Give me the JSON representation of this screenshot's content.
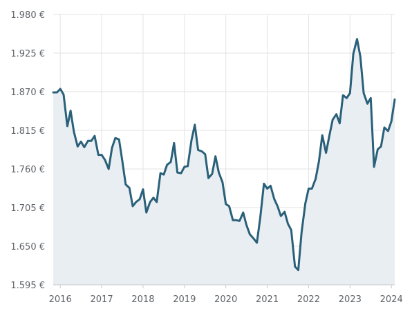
{
  "chart_data": {
    "type": "area",
    "title": "",
    "xlabel": "",
    "ylabel": "",
    "y_ticks": [
      "1.980 €",
      "1.925 €",
      "1.870 €",
      "1.815 €",
      "1.760 €",
      "1.705 €",
      "1.650 €",
      "1.595 €"
    ],
    "y_tick_values": [
      1980,
      1925,
      1870,
      1815,
      1760,
      1705,
      1650,
      1595
    ],
    "ylim": [
      1595,
      1980
    ],
    "x_ticks": [
      "2016",
      "2017",
      "2018",
      "2019",
      "2020",
      "2021",
      "2022",
      "2023",
      "2024"
    ],
    "x_tick_values": [
      2016,
      2017,
      2018,
      2019,
      2020,
      2021,
      2022,
      2023,
      2024
    ],
    "xlim": [
      2015.83,
      2024.08
    ],
    "grid": true,
    "colors": {
      "line": "#2a6079",
      "fill": "#e9eef2",
      "grid": "#e3e3e3",
      "axis": "#c9c9c9"
    },
    "series": [
      {
        "x": [
          2015.83,
          2015.92,
          2016.0,
          2016.08,
          2016.17,
          2016.25,
          2016.33,
          2016.42,
          2016.5,
          2016.58,
          2016.67,
          2016.75,
          2016.83,
          2016.92,
          2017.0,
          2017.08,
          2017.17,
          2017.25,
          2017.33,
          2017.42,
          2017.5,
          2017.58,
          2017.67,
          2017.75,
          2017.83,
          2017.92,
          2018.0,
          2018.08,
          2018.17,
          2018.25,
          2018.33,
          2018.42,
          2018.5,
          2018.58,
          2018.67,
          2018.75,
          2018.83,
          2018.92,
          2019.0,
          2019.08,
          2019.17,
          2019.25,
          2019.33,
          2019.42,
          2019.5,
          2019.58,
          2019.67,
          2019.75,
          2019.83,
          2019.92,
          2020.0,
          2020.08,
          2020.17,
          2020.25,
          2020.33,
          2020.42,
          2020.5,
          2020.58,
          2020.67,
          2020.75,
          2020.83,
          2020.92,
          2021.0,
          2021.08,
          2021.17,
          2021.25,
          2021.33,
          2021.42,
          2021.5,
          2021.58,
          2021.67,
          2021.75,
          2021.83,
          2021.92,
          2022.0,
          2022.08,
          2022.17,
          2022.25,
          2022.33,
          2022.42,
          2022.5,
          2022.58,
          2022.67,
          2022.75,
          2022.83,
          2022.92,
          2023.0,
          2023.08,
          2023.17,
          2023.25,
          2023.33,
          2023.42,
          2023.5,
          2023.58,
          2023.67,
          2023.75,
          2023.83,
          2023.92,
          2024.0,
          2024.08
        ],
        "values": [
          1869,
          1869,
          1874,
          1866,
          1821,
          1843,
          1813,
          1792,
          1799,
          1791,
          1800,
          1800,
          1807,
          1780,
          1780,
          1773,
          1760,
          1790,
          1804,
          1802,
          1771,
          1738,
          1733,
          1707,
          1713,
          1717,
          1731,
          1698,
          1713,
          1719,
          1713,
          1754,
          1752,
          1766,
          1770,
          1797,
          1755,
          1754,
          1763,
          1764,
          1801,
          1823,
          1787,
          1785,
          1781,
          1747,
          1753,
          1778,
          1755,
          1741,
          1710,
          1707,
          1687,
          1687,
          1686,
          1698,
          1680,
          1667,
          1661,
          1655,
          1690,
          1739,
          1732,
          1736,
          1717,
          1707,
          1693,
          1699,
          1682,
          1673,
          1621,
          1616,
          1670,
          1711,
          1732,
          1732,
          1746,
          1771,
          1808,
          1783,
          1807,
          1830,
          1838,
          1825,
          1865,
          1861,
          1868,
          1924,
          1945,
          1920,
          1868,
          1853,
          1861,
          1763,
          1788,
          1792,
          1819,
          1814,
          1828,
          1859
        ]
      }
    ]
  }
}
